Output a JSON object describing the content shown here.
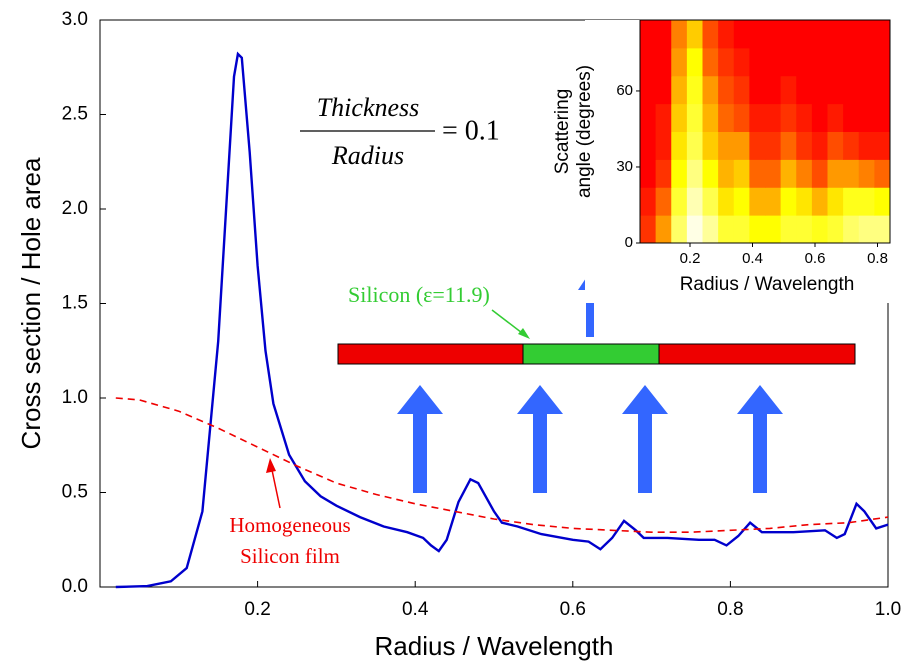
{
  "chart_data": [
    {
      "type": "line",
      "xlabel": "Radius / Wavelength",
      "ylabel": "Cross section / Hole area",
      "xlim": [
        0,
        1.0
      ],
      "ylim": [
        0,
        3.0
      ],
      "xticks": [
        0.2,
        0.4,
        0.6,
        0.8,
        {
          "value": 1.0,
          "label": "1.0"
        }
      ],
      "yticks": [
        {
          "value": 0,
          "label": "0.0"
        },
        0.5,
        {
          "value": 1.0,
          "label": "1.0"
        },
        1.5,
        {
          "value": 2.0,
          "label": "2.0"
        },
        2.5,
        {
          "value": 3.0,
          "label": "3.0"
        }
      ],
      "series": [
        {
          "color": "#0000cc",
          "dash": false,
          "x": [
            0.02,
            0.06,
            0.09,
            0.11,
            0.13,
            0.15,
            0.16,
            0.17,
            0.175,
            0.18,
            0.19,
            0.2,
            0.21,
            0.22,
            0.24,
            0.26,
            0.28,
            0.3,
            0.33,
            0.36,
            0.39,
            0.41,
            0.42,
            0.43,
            0.44,
            0.455,
            0.47,
            0.48,
            0.5,
            0.51,
            0.53,
            0.56,
            0.6,
            0.62,
            0.635,
            0.65,
            0.665,
            0.68,
            0.69,
            0.72,
            0.76,
            0.78,
            0.795,
            0.81,
            0.825,
            0.84,
            0.88,
            0.92,
            0.935,
            0.945,
            0.96,
            0.97,
            0.985,
            1.0
          ],
          "values": [
            0,
            0.005,
            0.03,
            0.1,
            0.4,
            1.3,
            2.0,
            2.7,
            2.82,
            2.8,
            2.3,
            1.7,
            1.25,
            0.97,
            0.7,
            0.56,
            0.48,
            0.43,
            0.37,
            0.32,
            0.29,
            0.26,
            0.22,
            0.19,
            0.25,
            0.45,
            0.57,
            0.55,
            0.4,
            0.34,
            0.32,
            0.28,
            0.25,
            0.24,
            0.2,
            0.26,
            0.35,
            0.3,
            0.26,
            0.26,
            0.25,
            0.25,
            0.22,
            0.27,
            0.34,
            0.29,
            0.29,
            0.3,
            0.26,
            0.28,
            0.44,
            0.4,
            0.31,
            0.33
          ]
        },
        {
          "color": "#ee0000",
          "dash": true,
          "x": [
            0.02,
            0.05,
            0.1,
            0.15,
            0.2,
            0.25,
            0.3,
            0.35,
            0.4,
            0.45,
            0.5,
            0.55,
            0.6,
            0.65,
            0.7,
            0.75,
            0.8,
            0.85,
            0.9,
            0.95,
            1.0
          ],
          "values": [
            1.0,
            0.99,
            0.93,
            0.84,
            0.74,
            0.64,
            0.55,
            0.49,
            0.44,
            0.4,
            0.36,
            0.33,
            0.31,
            0.3,
            0.29,
            0.29,
            0.3,
            0.31,
            0.33,
            0.34,
            0.37
          ]
        }
      ],
      "annotations": {
        "film_label": [
          "Homogeneous",
          "Silicon film"
        ],
        "silicon_label": "Silicon (ε=11.9)",
        "ratio_numerator": "Thickness",
        "ratio_denominator": "Radius",
        "ratio_value": "= 0.1"
      }
    },
    {
      "type": "heatmap",
      "xlabel": "Radius / Wavelength",
      "ylabel": [
        "Scattering",
        "angle (degrees)"
      ],
      "xlim": [
        0.04,
        0.84
      ],
      "ylim": [
        0,
        88
      ],
      "xticks": [
        0.2,
        0.4,
        0.6,
        0.8
      ],
      "yticks": [
        0,
        30,
        60
      ],
      "x_bins": [
        0.04,
        0.09,
        0.14,
        0.19,
        0.24,
        0.29,
        0.34,
        0.39,
        0.44,
        0.49,
        0.54,
        0.59,
        0.64,
        0.69,
        0.74,
        0.79,
        0.84
      ],
      "y_bins": [
        0,
        11,
        22,
        33,
        44,
        55,
        66,
        77,
        88
      ],
      "colormap": [
        "#ff0000",
        "#ffff00",
        "#ffffff"
      ],
      "z": [
        [
          0.1,
          0.3,
          0.7,
          0.95,
          0.8,
          0.6,
          0.6,
          0.5,
          0.5,
          0.6,
          0.6,
          0.55,
          0.6,
          0.7,
          0.75,
          0.75
        ],
        [
          0.05,
          0.2,
          0.6,
          0.85,
          0.65,
          0.45,
          0.5,
          0.35,
          0.35,
          0.5,
          0.45,
          0.35,
          0.45,
          0.55,
          0.55,
          0.5
        ],
        [
          0,
          0.1,
          0.5,
          0.75,
          0.5,
          0.35,
          0.4,
          0.2,
          0.2,
          0.35,
          0.25,
          0.15,
          0.3,
          0.3,
          0.25,
          0.2
        ],
        [
          0,
          0.05,
          0.45,
          0.65,
          0.4,
          0.3,
          0.3,
          0.1,
          0.1,
          0.2,
          0.1,
          0.05,
          0.15,
          0.1,
          0.05,
          0.05
        ],
        [
          0,
          0.05,
          0.4,
          0.6,
          0.35,
          0.2,
          0.15,
          0.05,
          0.05,
          0.1,
          0.05,
          0,
          0.05,
          0,
          0,
          0
        ],
        [
          0,
          0,
          0.35,
          0.55,
          0.3,
          0.15,
          0.1,
          0,
          0,
          0.05,
          0,
          0,
          0,
          0,
          0,
          0
        ],
        [
          0,
          0,
          0.3,
          0.5,
          0.2,
          0.1,
          0.05,
          0,
          0,
          0,
          0,
          0,
          0,
          0,
          0,
          0
        ],
        [
          0,
          0,
          0.25,
          0.4,
          0.15,
          0.05,
          0,
          0,
          0,
          0,
          0,
          0,
          0,
          0,
          0,
          0
        ]
      ]
    }
  ]
}
